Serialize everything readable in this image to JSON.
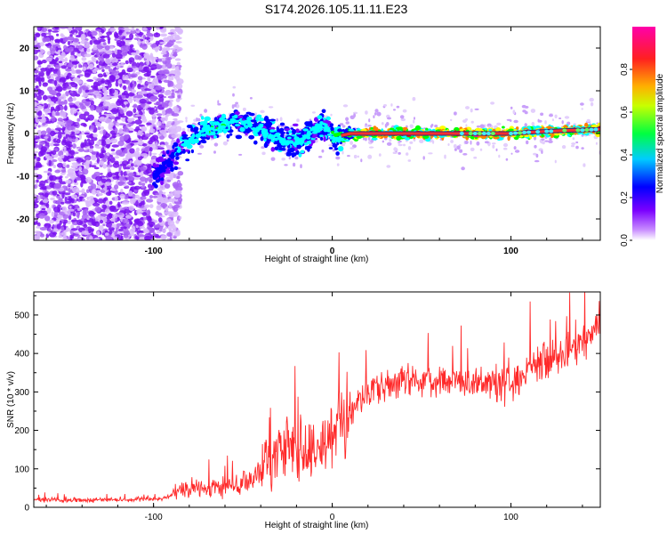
{
  "title": "S174.2026.105.11.11.E23",
  "chart_data": [
    {
      "type": "heatmap",
      "name": "doppler-spectrogram",
      "xlabel": "Height of straight line (km)",
      "ylabel": "Frequency (Hz)",
      "xlim": [
        -167,
        150
      ],
      "ylim": [
        -25,
        25
      ],
      "xticks": [
        -100,
        0,
        100
      ],
      "yticks": [
        -20,
        -10,
        0,
        10,
        20
      ],
      "colorbar": {
        "label": "Normalized spectral amplitude",
        "range": [
          0,
          1
        ],
        "ticks": [
          0.0,
          0.2,
          0.4,
          0.6,
          0.8
        ],
        "colors": [
          "#ffffff",
          "#7b00ff",
          "#0000ff",
          "#00ffff",
          "#00ff00",
          "#ffff00",
          "#ff8000",
          "#ff0000",
          "#ff00aa"
        ]
      },
      "ridge": {
        "x": [
          -100,
          -95,
          -90,
          -85,
          -80,
          -75,
          -70,
          -65,
          -60,
          -55,
          -50,
          -45,
          -40,
          -35,
          -30,
          -25,
          -20,
          -15,
          -10,
          -5,
          0,
          10,
          20,
          40,
          60,
          80,
          100,
          110,
          120,
          130,
          140,
          150
        ],
        "freq": [
          -10,
          -8,
          -6,
          -4,
          -2,
          0,
          1,
          1.5,
          2,
          3,
          2.5,
          2,
          1,
          0,
          -1,
          -2,
          -2,
          -1,
          1,
          2,
          -1,
          0,
          0,
          0,
          0,
          0,
          0,
          0.3,
          0.5,
          0.7,
          0.8,
          1
        ],
        "amplitude": [
          0.3,
          0.3,
          0.3,
          0.4,
          0.4,
          0.4,
          0.45,
          0.45,
          0.45,
          0.4,
          0.4,
          0.45,
          0.45,
          0.4,
          0.4,
          0.4,
          0.4,
          0.45,
          0.4,
          0.4,
          0.45,
          0.6,
          0.95,
          0.95,
          0.95,
          0.95,
          0.9,
          0.9,
          0.9,
          0.9,
          0.9,
          0.95
        ]
      }
    },
    {
      "type": "line",
      "name": "snr",
      "xlabel": "Height of straight line (km)",
      "ylabel": "SNR (10 * v/v)",
      "xlim": [
        -167,
        150
      ],
      "ylim": [
        0,
        560
      ],
      "xticks": [
        -100,
        0,
        100
      ],
      "yticks": [
        0,
        100,
        200,
        300,
        400,
        500
      ],
      "color": "#ff2a2a",
      "series": [
        {
          "name": "SNR",
          "x": [
            -167,
            -140,
            -110,
            -95,
            -85,
            -75,
            -65,
            -55,
            -45,
            -35,
            -25,
            -15,
            -5,
            0,
            10,
            20,
            40,
            60,
            80,
            100,
            110,
            120,
            130,
            140,
            150
          ],
          "y": [
            20,
            18,
            20,
            22,
            40,
            55,
            50,
            55,
            70,
            130,
            160,
            150,
            180,
            180,
            240,
            300,
            330,
            330,
            320,
            320,
            350,
            380,
            400,
            430,
            480
          ]
        }
      ]
    }
  ]
}
